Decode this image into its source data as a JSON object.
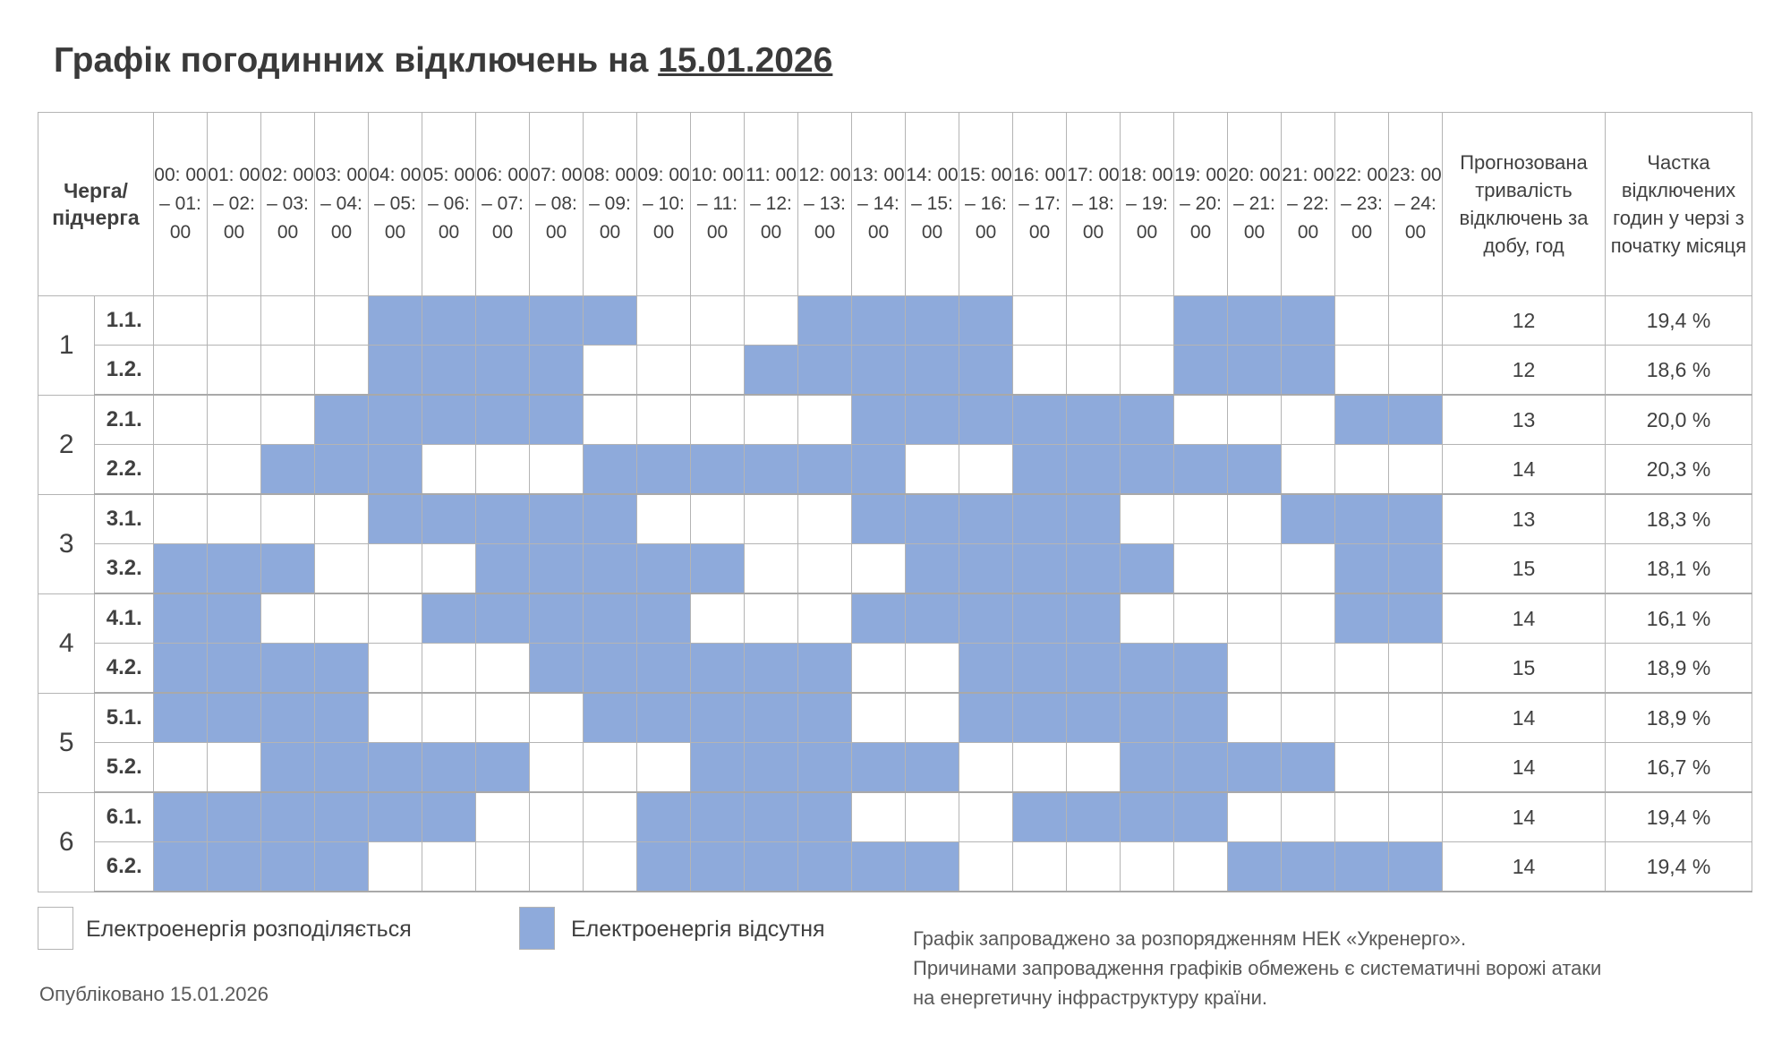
{
  "title": {
    "prefix": "Графік погодинних відключень на",
    "date": "15.01.2026"
  },
  "header": {
    "queue": "Черга/ підчерга",
    "hours": [
      "00: 00 – 01: 00",
      "01: 00 – 02: 00",
      "02: 00 – 03: 00",
      "03: 00 – 04: 00",
      "04: 00 – 05: 00",
      "05: 00 – 06: 00",
      "06: 00 – 07: 00",
      "07: 00 – 08: 00",
      "08: 00 – 09: 00",
      "09: 00 – 10: 00",
      "10: 00 – 11: 00",
      "11: 00 – 12: 00",
      "12: 00 – 13: 00",
      "13: 00 – 14: 00",
      "14: 00 – 15: 00",
      "15: 00 – 16: 00",
      "16: 00 – 17: 00",
      "17: 00 – 18: 00",
      "18: 00 – 19: 00",
      "19: 00 – 20: 00",
      "20: 00 – 21: 00",
      "21: 00 – 22: 00",
      "22: 00 – 23: 00",
      "23: 00 – 24: 00"
    ],
    "duration": "Прогнозована тривалість відключень за добу, год",
    "share": "Частка відключених годин у черзі з початку місяця"
  },
  "colors": {
    "off": "#8eaadb",
    "on": "#ffffff"
  },
  "groups": [
    {
      "label": "1",
      "rows": [
        {
          "sub": "1.1.",
          "off_hours": [
            4,
            5,
            6,
            7,
            8,
            12,
            13,
            14,
            15,
            19,
            20,
            21
          ],
          "duration": "12",
          "share": "19,4 %"
        },
        {
          "sub": "1.2.",
          "off_hours": [
            4,
            5,
            6,
            7,
            11,
            12,
            13,
            14,
            15,
            19,
            20,
            21
          ],
          "duration": "12",
          "share": "18,6 %"
        }
      ]
    },
    {
      "label": "2",
      "rows": [
        {
          "sub": "2.1.",
          "off_hours": [
            3,
            4,
            5,
            6,
            7,
            13,
            14,
            15,
            16,
            17,
            18,
            22,
            23
          ],
          "duration": "13",
          "share": "20,0 %"
        },
        {
          "sub": "2.2.",
          "off_hours": [
            2,
            3,
            4,
            8,
            9,
            10,
            11,
            12,
            13,
            16,
            17,
            18,
            19,
            20
          ],
          "duration": "14",
          "share": "20,3 %"
        }
      ]
    },
    {
      "label": "3",
      "rows": [
        {
          "sub": "3.1.",
          "off_hours": [
            4,
            5,
            6,
            7,
            8,
            13,
            14,
            15,
            16,
            17,
            21,
            22,
            23
          ],
          "duration": "13",
          "share": "18,3 %"
        },
        {
          "sub": "3.2.",
          "off_hours": [
            0,
            1,
            2,
            6,
            7,
            8,
            9,
            10,
            14,
            15,
            16,
            17,
            18,
            22,
            23
          ],
          "duration": "15",
          "share": "18,1 %"
        }
      ]
    },
    {
      "label": "4",
      "rows": [
        {
          "sub": "4.1.",
          "off_hours": [
            0,
            1,
            5,
            6,
            7,
            8,
            9,
            13,
            14,
            15,
            16,
            17,
            22,
            23
          ],
          "duration": "14",
          "share": "16,1 %"
        },
        {
          "sub": "4.2.",
          "off_hours": [
            0,
            1,
            2,
            3,
            7,
            8,
            9,
            10,
            11,
            12,
            15,
            16,
            17,
            18,
            19
          ],
          "duration": "15",
          "share": "18,9 %"
        }
      ]
    },
    {
      "label": "5",
      "rows": [
        {
          "sub": "5.1.",
          "off_hours": [
            0,
            1,
            2,
            3,
            8,
            9,
            10,
            11,
            12,
            15,
            16,
            17,
            18,
            19
          ],
          "duration": "14",
          "share": "18,9 %"
        },
        {
          "sub": "5.2.",
          "off_hours": [
            2,
            3,
            4,
            5,
            6,
            10,
            11,
            12,
            13,
            14,
            18,
            19,
            20,
            21
          ],
          "duration": "14",
          "share": "16,7 %"
        }
      ]
    },
    {
      "label": "6",
      "rows": [
        {
          "sub": "6.1.",
          "off_hours": [
            0,
            1,
            2,
            3,
            4,
            5,
            9,
            10,
            11,
            12,
            16,
            17,
            18,
            19
          ],
          "duration": "14",
          "share": "19,4 %"
        },
        {
          "sub": "6.2.",
          "off_hours": [
            0,
            1,
            2,
            3,
            9,
            10,
            11,
            12,
            13,
            14,
            20,
            21,
            22,
            23
          ],
          "duration": "14",
          "share": "19,4 %"
        }
      ]
    }
  ],
  "legend": {
    "on": "Електроенергія розподіляється",
    "off": "Електроенергія відсутня"
  },
  "note": [
    "Графік запроваджено за розпорядженням НЕК «Укренерго».",
    "Причинами запровадження графіків обмежень є систематичні ворожі атаки",
    "на енергетичну інфраструктуру країни."
  ],
  "published": "Опубліковано 15.01.2026"
}
